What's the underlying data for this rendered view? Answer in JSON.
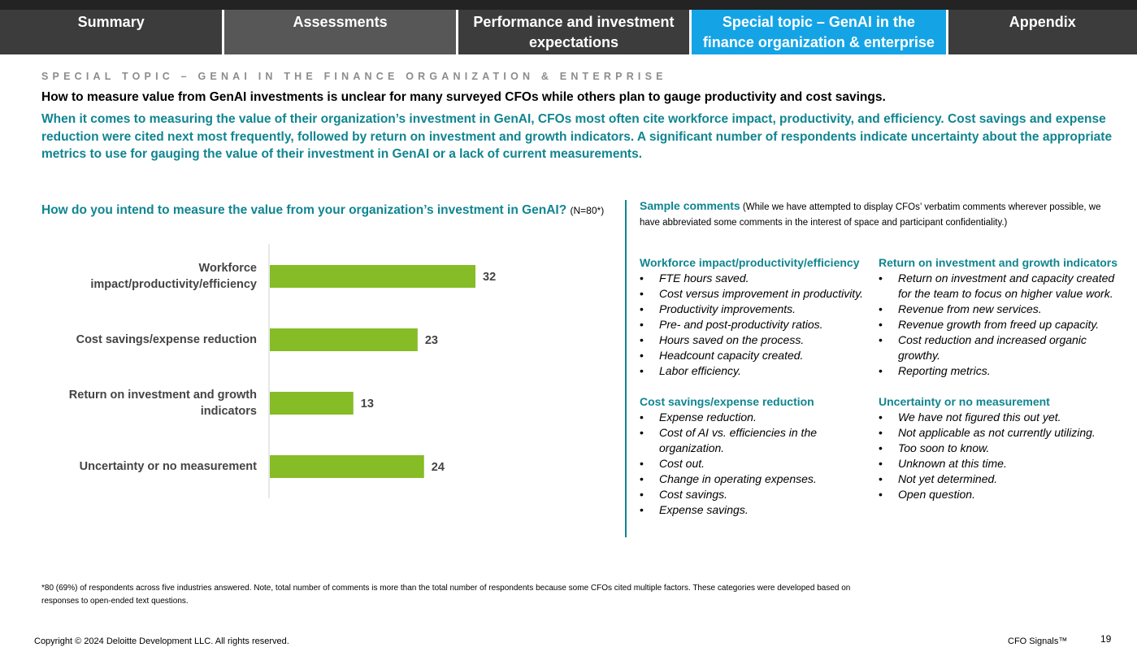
{
  "nav": {
    "tabs": [
      "Summary",
      "Assessments",
      "Performance and investment expectations",
      "Special topic – GenAI in the finance organization & enterprise",
      "Appendix"
    ],
    "active": 3
  },
  "kicker": "SPECIAL TOPIC – GENAI IN THE FINANCE ORGANIZATION & ENTERPRISE",
  "headline": "How to measure value from GenAI investments is unclear for many surveyed CFOs while others plan to gauge productivity and cost savings.",
  "lead": "When it comes to measuring the value of their organization’s investment in GenAI, CFOs most often cite workforce impact, productivity, and efficiency. Cost savings and expense reduction were cited next most frequently, followed by return on investment and growth indicators. A significant number of respondents indicate uncertainty about the appropriate metrics to use for gauging the value of their investment in GenAI or a lack of current measurements.",
  "question": {
    "title": "How do you intend to measure the value from your organization’s investment in GenAI?",
    "n": "(N=80*)"
  },
  "chart_data": {
    "type": "bar",
    "orientation": "horizontal",
    "categories": [
      "Workforce impact/productivity/efficiency",
      "Cost savings/expense reduction",
      "Return on investment and growth indicators",
      "Uncertainty or no measurement"
    ],
    "values": [
      32,
      23,
      13,
      24
    ],
    "color": "#86bc25",
    "xlim": [
      0,
      40
    ]
  },
  "comments": {
    "title": "Sample comments",
    "note": "(While we have attempted to display CFOs’ verbatim comments wherever possible, we have abbreviated some comments in the interest of space and participant confidentiality.)",
    "left": [
      {
        "heading": "Workforce impact/productivity/efficiency",
        "items": [
          "FTE hours saved.",
          "Cost versus improvement in productivity.",
          "Productivity improvements.",
          "Pre- and post-productivity ratios.",
          "Hours saved on the process.",
          "Headcount capacity created.",
          "Labor efficiency."
        ]
      },
      {
        "heading": "Cost savings/expense reduction",
        "items": [
          "Expense reduction.",
          "Cost of AI vs. efficiencies in the organization.",
          "Cost out.",
          "Change in operating expenses.",
          "Cost savings.",
          "Expense savings."
        ]
      }
    ],
    "right": [
      {
        "heading": "Return on investment and growth indicators",
        "items": [
          "Return on investment and capacity created for the team to focus on higher value work.",
          "Revenue from new services.",
          "Revenue growth from freed up capacity.",
          "Cost reduction and increased organic growthy.",
          "Reporting metrics."
        ]
      },
      {
        "heading": "Uncertainty or no measurement",
        "items": [
          "We have not figured this out yet.",
          "Not applicable as not currently utilizing.",
          "Too soon to know.",
          "Unknown at this time.",
          "Not yet determined.",
          "Open question."
        ]
      }
    ]
  },
  "footnote": "*80 (69%) of respondents across five industries answered. Note, total number of comments is more than the total number of respondents because some CFOs cited multiple factors. These categories were developed based on responses to open-ended text questions.",
  "footer": {
    "copyright": "Copyright © 2024 Deloitte Development LLC. All rights reserved.",
    "brand": "CFO Signals™",
    "page": "19"
  }
}
